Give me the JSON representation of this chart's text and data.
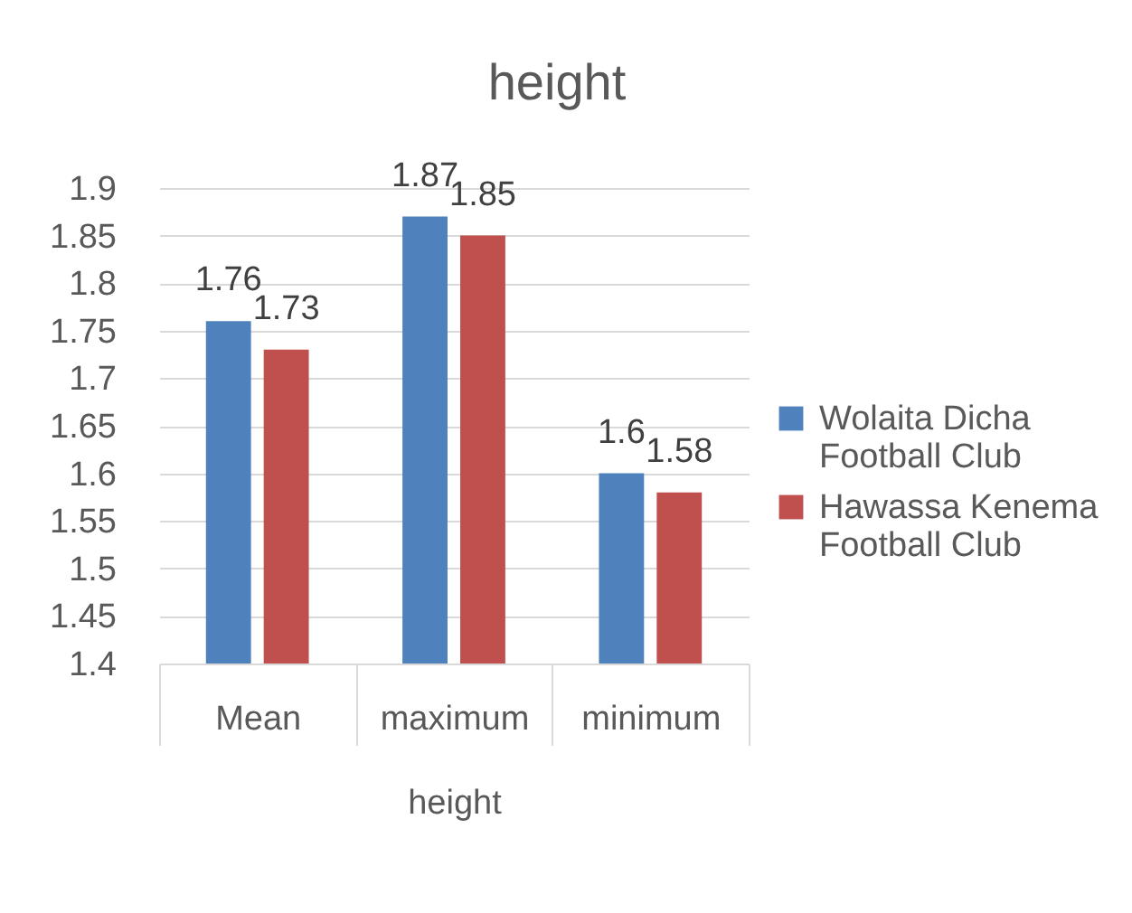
{
  "chart_data": {
    "type": "bar",
    "title": "height",
    "xlabel": "height",
    "categories": [
      "Mean",
      "maximum",
      "minimum"
    ],
    "series": [
      {
        "name": "Wolaita Dicha Football Club",
        "color": "#4f81bd",
        "values": [
          1.76,
          1.87,
          1.6
        ]
      },
      {
        "name": "Hawassa Kenema Football Club",
        "color": "#c0504d",
        "values": [
          1.73,
          1.85,
          1.58
        ]
      }
    ],
    "ylim": [
      1.4,
      1.9
    ],
    "yticks": [
      1.4,
      1.45,
      1.5,
      1.55,
      1.6,
      1.65,
      1.7,
      1.75,
      1.8,
      1.85,
      1.9
    ],
    "grid": "y",
    "legend": "right",
    "data_labels": true
  }
}
